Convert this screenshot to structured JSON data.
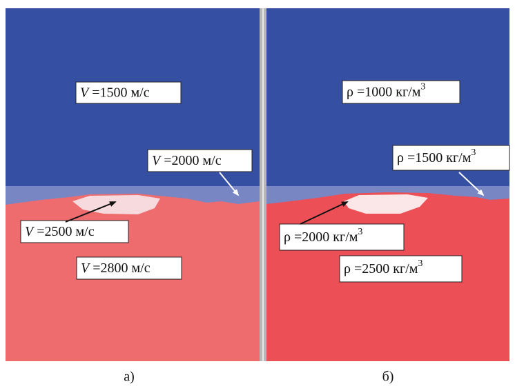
{
  "panels": [
    {
      "caption": "а)",
      "labels": [
        {
          "symbol": "V",
          "text": " =1500 м/с"
        },
        {
          "symbol": "V",
          "text": " =2000 м/с"
        },
        {
          "symbol": "V",
          "text": " =2500 м/с"
        },
        {
          "symbol": "V",
          "text": " =2800 м/с"
        }
      ]
    },
    {
      "caption": "б)",
      "labels": [
        {
          "symbol": "ρ",
          "text": " =1000 кг/м",
          "sup": "3"
        },
        {
          "symbol": "ρ",
          "text": " =1500 кг/м",
          "sup": "3"
        },
        {
          "symbol": "ρ",
          "text": " =2000 кг/м",
          "sup": "3"
        },
        {
          "symbol": "ρ",
          "text": " =2500 кг/м",
          "sup": "3"
        }
      ]
    }
  ]
}
